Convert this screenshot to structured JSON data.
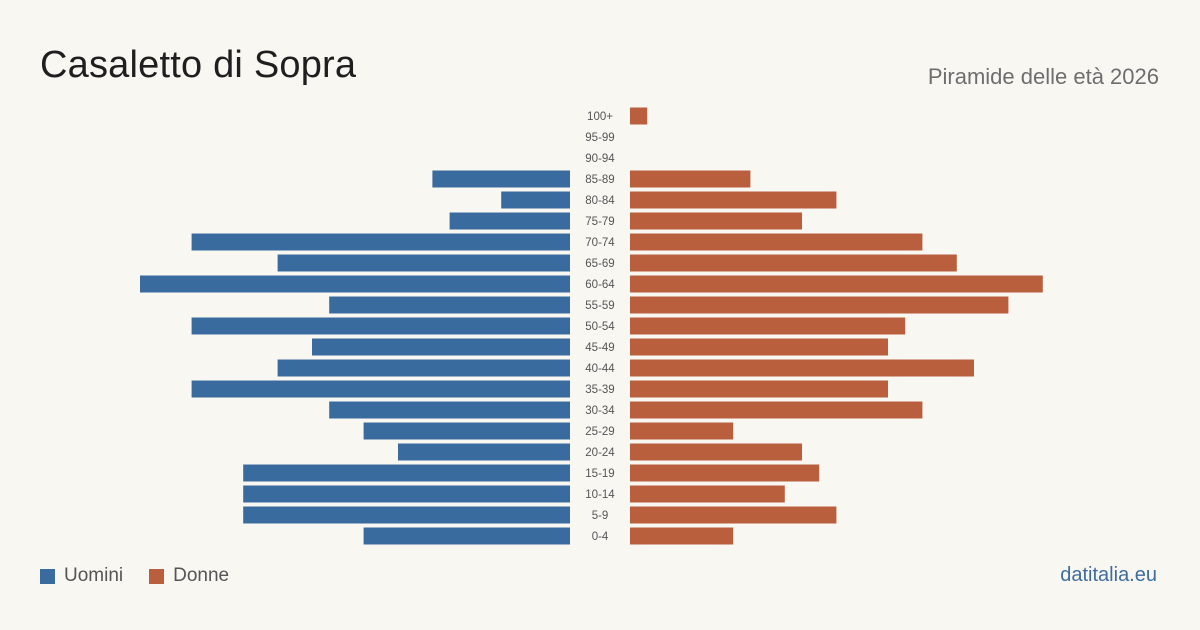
{
  "header": {
    "title": "Casaletto di Sopra",
    "subtitle": "Piramide delle età 2026"
  },
  "legend": {
    "men_label": "Uomini",
    "women_label": "Donne"
  },
  "footer": {
    "brand": "datitalia.eu"
  },
  "colors": {
    "men": "#3a6b9f",
    "women": "#ba5f3e",
    "background": "#f9f7f2"
  },
  "chart_data": {
    "type": "bar",
    "orientation": "horizontal-pyramid",
    "categories": [
      "100+",
      "95-99",
      "90-94",
      "85-89",
      "80-84",
      "75-79",
      "70-74",
      "65-69",
      "60-64",
      "55-59",
      "50-54",
      "45-49",
      "40-44",
      "35-39",
      "30-34",
      "25-29",
      "20-24",
      "15-19",
      "10-14",
      "5-9",
      "0-4"
    ],
    "series": [
      {
        "name": "Uomini",
        "side": "left",
        "values": [
          0,
          0,
          0,
          8,
          4,
          7,
          22,
          17,
          25,
          14,
          22,
          15,
          17,
          22,
          14,
          12,
          10,
          19,
          19,
          19,
          12
        ]
      },
      {
        "name": "Donne",
        "side": "right",
        "values": [
          1,
          0,
          0,
          7,
          12,
          10,
          17,
          19,
          24,
          22,
          16,
          15,
          20,
          15,
          17,
          6,
          10,
          11,
          9,
          12,
          6
        ]
      }
    ],
    "title": "Casaletto di Sopra",
    "subtitle": "Piramide delle età 2026",
    "xlim": [
      0,
      25
    ],
    "grid": false,
    "legend_position": "bottom-left"
  }
}
